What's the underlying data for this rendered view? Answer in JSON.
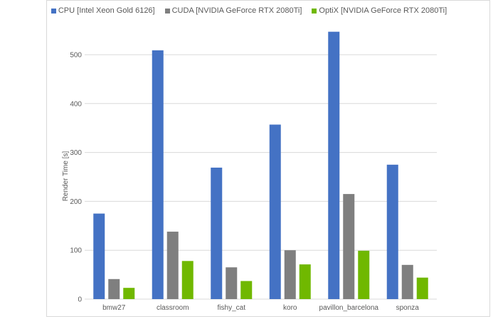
{
  "chart_data": {
    "type": "bar",
    "title": "",
    "xlabel": "",
    "ylabel": "Render Time [s]",
    "ylim": [
      0,
      560
    ],
    "yticks": [
      0,
      100,
      200,
      300,
      400,
      500
    ],
    "grid": true,
    "legend_position": "top",
    "categories": [
      "bmw27",
      "classroom",
      "fishy_cat",
      "koro",
      "pavillon_barcelona",
      "sponza"
    ],
    "series": [
      {
        "name": "CPU [Intel Xeon Gold 6126]",
        "color": "#4472c4",
        "values": [
          175,
          509,
          269,
          357,
          547,
          275
        ]
      },
      {
        "name": "CUDA [NVIDIA GeForce RTX 2080Ti]",
        "color": "#7f7f7f",
        "values": [
          41,
          138,
          65,
          100,
          215,
          70
        ]
      },
      {
        "name": "OptiX [NVIDIA GeForce RTX 2080Ti]",
        "color": "#70b800",
        "values": [
          23,
          78,
          37,
          71,
          99,
          44
        ]
      }
    ]
  }
}
